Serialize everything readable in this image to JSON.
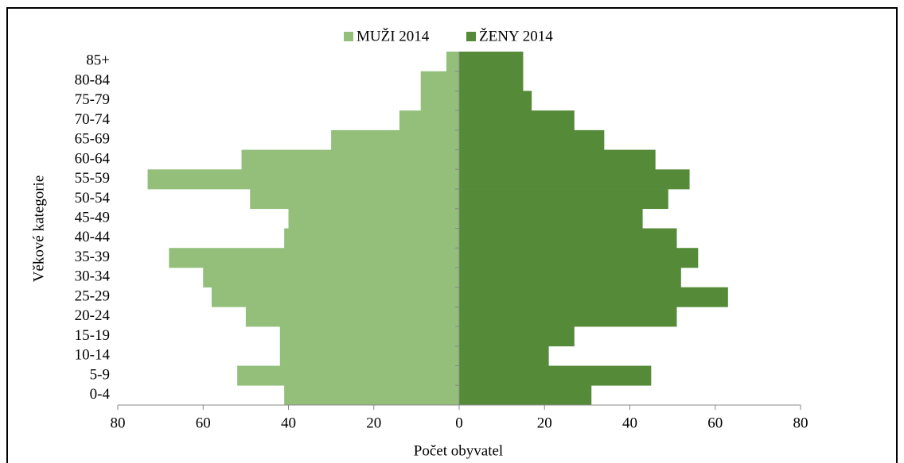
{
  "chart_data": {
    "type": "bar",
    "orientation": "horizontal",
    "x_label": "Počet obyvatel",
    "y_label": "Věkové kategorie",
    "categories": [
      "0-4",
      "5-9",
      "10-14",
      "15-19",
      "20-24",
      "25-29",
      "30-34",
      "35-39",
      "40-44",
      "45-49",
      "50-54",
      "55-59",
      "60-64",
      "65-69",
      "70-74",
      "75-79",
      "80-84",
      "85+"
    ],
    "series": [
      {
        "name": "MUŽI 2014",
        "color": "#93bf7b",
        "values": [
          -41,
          -52,
          -42,
          -42,
          -50,
          -58,
          -60,
          -68,
          -41,
          -40,
          -49,
          -73,
          -51,
          -30,
          -14,
          -9,
          -9,
          -3
        ]
      },
      {
        "name": "ŽENY 2014",
        "color": "#548a38",
        "values": [
          31,
          45,
          21,
          27,
          51,
          63,
          52,
          56,
          51,
          43,
          49,
          54,
          46,
          34,
          27,
          17,
          15,
          15
        ]
      }
    ],
    "xlim": [
      -80,
      80
    ],
    "xticks": [
      {
        "value": -80,
        "label": "80"
      },
      {
        "value": -60,
        "label": "60"
      },
      {
        "value": -40,
        "label": "40"
      },
      {
        "value": -20,
        "label": "20"
      },
      0,
      20,
      40,
      60,
      80
    ],
    "legend": "top",
    "grid": false
  }
}
